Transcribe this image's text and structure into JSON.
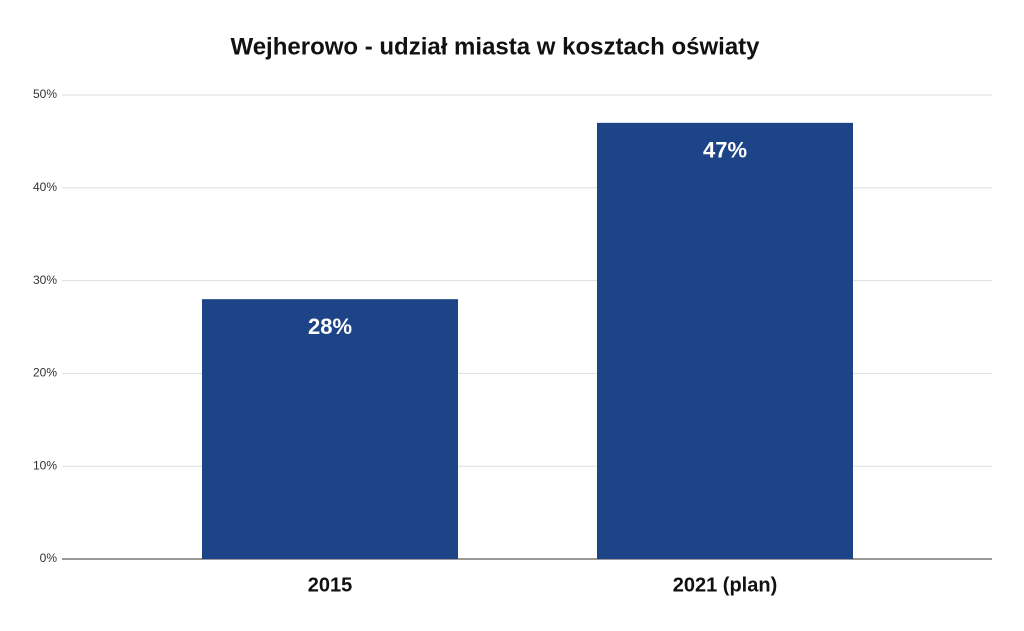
{
  "chart_data": {
    "type": "bar",
    "title": "Wejherowo - udział miasta w kosztach oświaty",
    "categories": [
      "2015",
      "2021 (plan)"
    ],
    "values": [
      28,
      47
    ],
    "value_labels": [
      "28%",
      "47%"
    ],
    "color": "#1d4486",
    "ylim": [
      0,
      50
    ],
    "yticks": [
      {
        "value": 0,
        "label": "0%"
      },
      {
        "value": 10,
        "label": "10%"
      },
      {
        "value": 20,
        "label": "20%"
      },
      {
        "value": 30,
        "label": "30%"
      },
      {
        "value": 40,
        "label": "40%"
      },
      {
        "value": 50,
        "label": "50%"
      }
    ],
    "grid": true
  }
}
